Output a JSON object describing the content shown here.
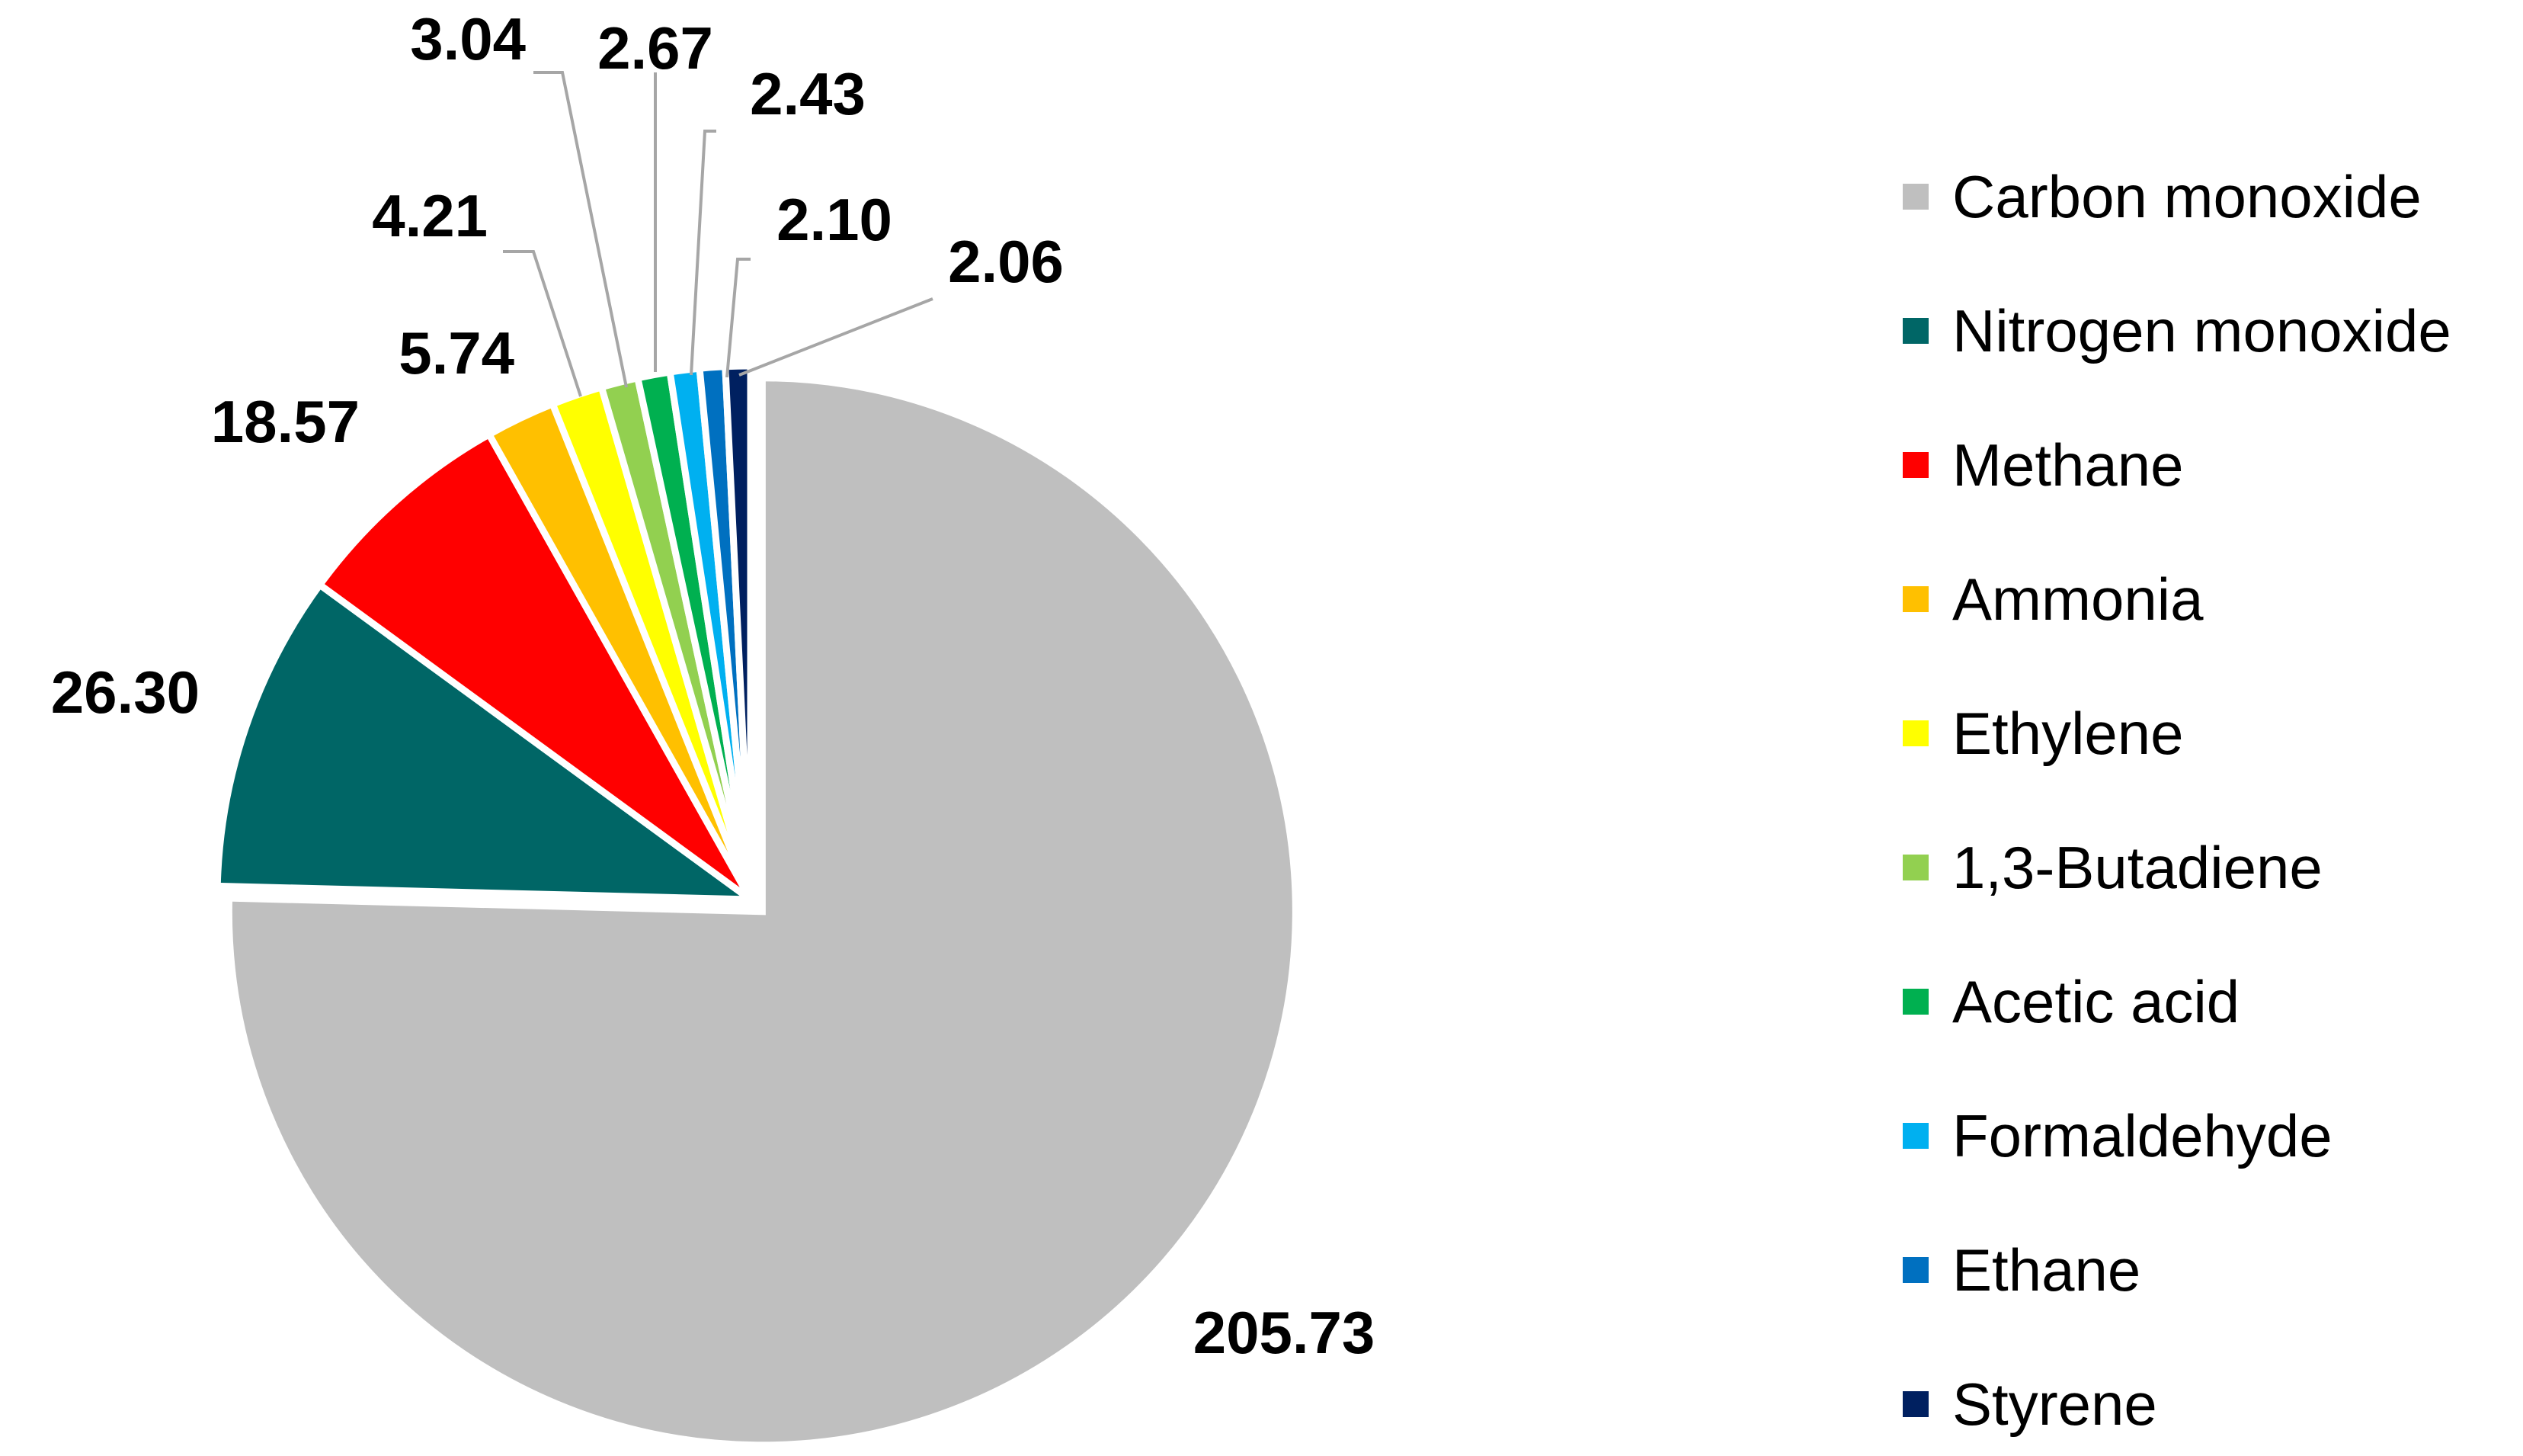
{
  "chart_data": {
    "type": "pie",
    "title": "",
    "legend_position": "right",
    "slices": [
      {
        "label": "Carbon monoxide",
        "value": 205.73,
        "value_label": "205.73",
        "color": "#bfbfbf"
      },
      {
        "label": "Nitrogen monoxide",
        "value": 26.3,
        "value_label": "26.30",
        "color": "#006666"
      },
      {
        "label": "Methane",
        "value": 18.57,
        "value_label": "18.57",
        "color": "#ff0000"
      },
      {
        "label": "Ammonia",
        "value": 5.74,
        "value_label": "5.74",
        "color": "#ffc000"
      },
      {
        "label": "Ethylene",
        "value": 4.21,
        "value_label": "4.21",
        "color": "#ffff00"
      },
      {
        "label": "1,3-Butadiene",
        "value": 3.04,
        "value_label": "3.04",
        "color": "#92d050"
      },
      {
        "label": "Acetic acid",
        "value": 2.67,
        "value_label": "2.67",
        "color": "#00b050"
      },
      {
        "label": "Formaldehyde",
        "value": 2.43,
        "value_label": "2.43",
        "color": "#00b0f0"
      },
      {
        "label": "Ethane",
        "value": 2.1,
        "value_label": "2.10",
        "color": "#0070c0"
      },
      {
        "label": "Styrene",
        "value": 2.06,
        "value_label": "2.06",
        "color": "#002060"
      }
    ]
  }
}
